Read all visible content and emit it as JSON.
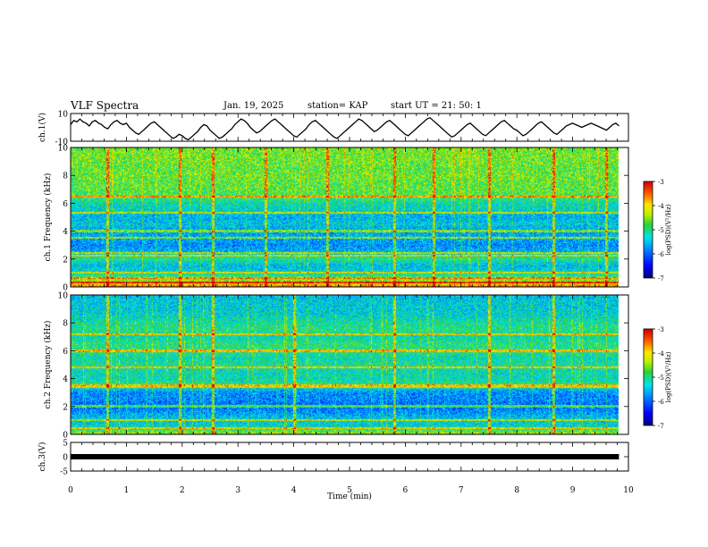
{
  "header": {
    "title": "VLF Spectra",
    "date": "Jan. 19, 2025",
    "station": "station= KAP",
    "start_ut": "start UT =  21: 50: 1"
  },
  "chart_data": [
    {
      "name": "ch1-voltage",
      "type": "line",
      "ylabel": "ch.1(V)",
      "ylim": [
        -10,
        10
      ],
      "y_ticks": [
        "10",
        "-10"
      ],
      "xlim": [
        0,
        10
      ],
      "samples": [
        2,
        5,
        4,
        6,
        4,
        3,
        1,
        4,
        5,
        3,
        2,
        0,
        -1,
        2,
        4,
        5,
        3,
        2,
        3,
        0,
        -2,
        -4,
        -5,
        -3,
        -1,
        1,
        3,
        4,
        2,
        0,
        -2,
        -4,
        -6,
        -8,
        -7,
        -5,
        -6,
        -8,
        -9,
        -7,
        -5,
        -3,
        0,
        2,
        1,
        -2,
        -4,
        -6,
        -8,
        -7,
        -5,
        -3,
        -1,
        2,
        4,
        6,
        5,
        3,
        0,
        -2,
        -4,
        -3,
        -1,
        1,
        3,
        5,
        6,
        4,
        2,
        0,
        -2,
        -4,
        -6,
        -7,
        -5,
        -3,
        -1,
        2,
        4,
        5,
        3,
        1,
        -1,
        -3,
        -5,
        -7,
        -8,
        -6,
        -4,
        -2,
        0,
        2,
        4,
        6,
        5,
        3,
        1,
        -1,
        -3,
        -2,
        0,
        2,
        4,
        5,
        3,
        1,
        -1,
        -3,
        -5,
        -6,
        -4,
        -2,
        0,
        2,
        4,
        6,
        7,
        5,
        3,
        1,
        -1,
        -3,
        -5,
        -7,
        -6,
        -4,
        -2,
        0,
        2,
        3,
        1,
        -1,
        -3,
        -5,
        -6,
        -4,
        -2,
        0,
        2,
        4,
        5,
        3,
        1,
        -1,
        -2,
        -4,
        -6,
        -5,
        -3,
        -1,
        1,
        3,
        4,
        2,
        0,
        -2,
        -4,
        -5,
        -3,
        -1,
        1,
        2,
        3,
        2,
        1,
        0,
        1,
        2,
        3,
        2,
        1,
        0,
        -1,
        -2,
        0,
        2,
        3,
        1
      ]
    },
    {
      "name": "ch1-spectrogram",
      "type": "heatmap",
      "ylabel": "ch.1  Frequency (kHz)",
      "ylim": [
        0,
        10
      ],
      "y_ticks": [
        "0",
        "2",
        "4",
        "6",
        "8",
        "10"
      ],
      "xlim": [
        0,
        10
      ],
      "colorbar": {
        "label": "log(PSD)(V²/Hz)",
        "range": [
          -7,
          -3
        ],
        "ticks": [
          "-3",
          "-4",
          "-5",
          "-6",
          "-7"
        ]
      },
      "profile_freq_khz": [
        0,
        0.5,
        1,
        1.5,
        2,
        2.5,
        3,
        3.5,
        4,
        4.5,
        5,
        5.5,
        6,
        6.5,
        7,
        7.5,
        8,
        8.5,
        9,
        9.5,
        10
      ],
      "profile_log_psd": [
        -3.6,
        -4.6,
        -5.3,
        -5.5,
        -5.0,
        -5.6,
        -5.8,
        -5.6,
        -5.7,
        -5.4,
        -5.6,
        -5.3,
        -5.2,
        -4.8,
        -4.7,
        -4.7,
        -4.6,
        -4.7,
        -4.6,
        -4.6,
        -4.6
      ],
      "lines_khz": [
        0.3,
        0.6,
        1.0,
        2.2,
        2.4,
        3.5,
        4.0,
        5.3,
        6.5
      ],
      "bursts_min": [
        0.65,
        1.95,
        2.55,
        3.5,
        4.6,
        5.8,
        6.5,
        7.5,
        8.65,
        9.6
      ]
    },
    {
      "name": "ch2-spectrogram",
      "type": "heatmap",
      "ylabel": "ch.2  Frequency (kHz)",
      "ylim": [
        0,
        10
      ],
      "y_ticks": [
        "0",
        "2",
        "4",
        "6",
        "8",
        "10"
      ],
      "xlim": [
        0,
        10
      ],
      "colorbar": {
        "label": "log(PSD)(V²/Hz)",
        "range": [
          -7,
          -3
        ],
        "ticks": [
          "-3",
          "-4",
          "-5",
          "-6",
          "-7"
        ]
      },
      "profile_freq_khz": [
        0,
        0.5,
        1,
        1.5,
        2,
        2.5,
        3,
        3.5,
        4,
        4.5,
        5,
        5.5,
        6,
        6.5,
        7,
        7.5,
        8,
        8.5,
        9,
        9.5,
        10
      ],
      "profile_log_psd": [
        -4.4,
        -5.3,
        -5.4,
        -5.7,
        -6.0,
        -5.8,
        -5.8,
        -5.0,
        -5.2,
        -5.2,
        -5.1,
        -5.2,
        -5.0,
        -5.0,
        -5.2,
        -5.0,
        -5.1,
        -5.3,
        -5.4,
        -5.4,
        -5.5
      ],
      "lines_khz": [
        0.4,
        1.0,
        2.0,
        3.4,
        3.5,
        4.8,
        6.0,
        7.2
      ],
      "bursts_min": [
        0.65,
        1.95,
        2.55,
        4.0,
        5.8,
        7.5,
        8.65
      ]
    },
    {
      "name": "ch3-voltage",
      "type": "line",
      "ylabel": "ch.3(V)",
      "ylim": [
        -5,
        5
      ],
      "y_ticks": [
        "5",
        "0",
        "-5"
      ],
      "xlim": [
        0,
        10
      ],
      "level": 0
    }
  ],
  "x_axis": {
    "label": "Time (min)",
    "ticks": [
      "0",
      "1",
      "2",
      "3",
      "4",
      "5",
      "6",
      "7",
      "8",
      "9",
      "10"
    ],
    "data_end_min": 9.83
  }
}
